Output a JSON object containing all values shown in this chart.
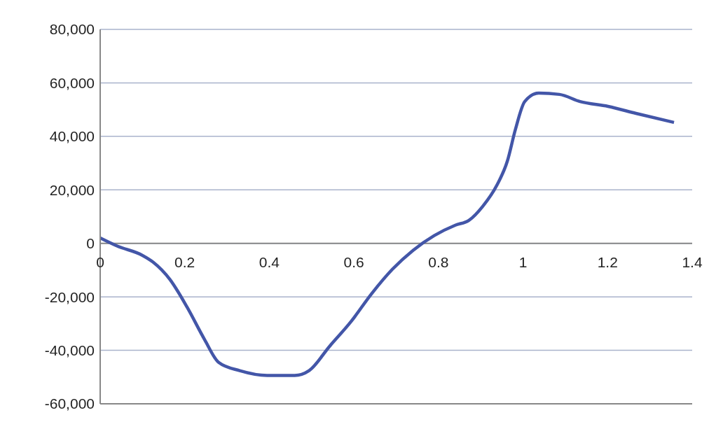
{
  "chart_data": {
    "type": "line",
    "xlim": [
      0,
      1.4
    ],
    "xticks": [
      0,
      0.2,
      0.4,
      0.6,
      0.8,
      1,
      1.2,
      1.4
    ],
    "ylim": [
      -60000,
      80000
    ],
    "yticks": [
      {
        "value": -60000,
        "label": "-60,000"
      },
      {
        "value": -40000,
        "label": "-40,000"
      },
      {
        "value": -20000,
        "label": "-20,000"
      },
      0,
      {
        "value": 20000,
        "label": "20,000"
      },
      {
        "value": 40000,
        "label": "40,000"
      },
      {
        "value": 60000,
        "label": "60,000"
      },
      {
        "value": 80000,
        "label": "80,000"
      }
    ],
    "grid": "y",
    "marker": "none",
    "line_style": "solid",
    "series": [
      {
        "color": "#4356a8",
        "x": [
          0,
          0.04,
          0.1,
          0.125,
          0.165,
          0.206,
          0.247,
          0.28,
          0.33,
          0.395,
          0.46,
          0.494,
          0.543,
          0.593,
          0.642,
          0.691,
          0.74,
          0.79,
          0.84,
          0.872,
          0.905,
          0.938,
          0.963,
          0.982,
          1.004,
          1.037,
          1.086,
          1.135,
          1.201,
          1.267,
          1.357
        ],
        "values": [
          2000,
          -1000,
          -4500,
          -7000,
          -13500,
          -24000,
          -36000,
          -44500,
          -47600,
          -49400,
          -49400,
          -47600,
          -38400,
          -29300,
          -18800,
          -9700,
          -2600,
          2900,
          6800,
          8600,
          13900,
          21700,
          30800,
          42600,
          53000,
          56200,
          55700,
          53000,
          51200,
          48600,
          45200
        ]
      }
    ]
  }
}
